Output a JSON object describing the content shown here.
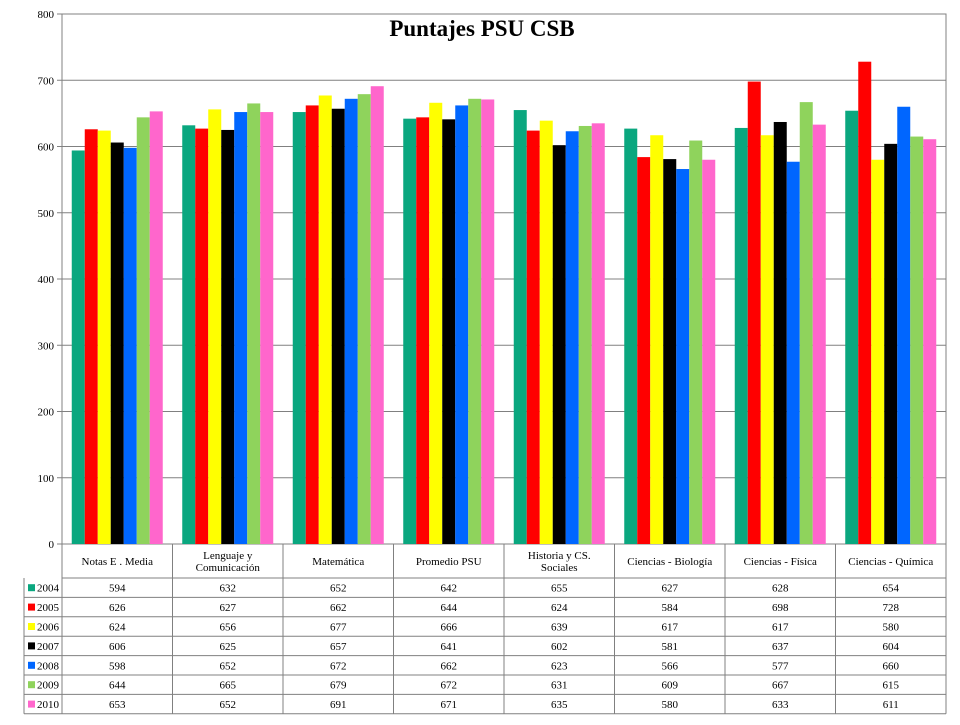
{
  "chart_data": {
    "type": "bar",
    "title": "Puntajes  PSU CSB",
    "xlabel": "",
    "ylabel": "",
    "ylim": [
      0,
      800
    ],
    "yticks": [
      0,
      100,
      200,
      300,
      400,
      500,
      600,
      700,
      800
    ],
    "grid": true,
    "legend": "data-table-bottom",
    "categories": [
      [
        "Notas E . Media"
      ],
      [
        "Lenguaje y",
        "Comunicación"
      ],
      [
        "Matemática"
      ],
      [
        "Promedio PSU"
      ],
      [
        "Historia y CS.",
        "Sociales"
      ],
      [
        "Ciencias - Biología"
      ],
      [
        "Ciencias - Física"
      ],
      [
        "Ciencias - Química"
      ]
    ],
    "series": [
      {
        "name": "2004",
        "color": "#0aa77f",
        "values": [
          594,
          632,
          652,
          642,
          655,
          627,
          628,
          654
        ]
      },
      {
        "name": "2005",
        "color": "#ff0000",
        "values": [
          626,
          627,
          662,
          644,
          624,
          584,
          698,
          728
        ]
      },
      {
        "name": "2006",
        "color": "#ffff00",
        "values": [
          624,
          656,
          677,
          666,
          639,
          617,
          617,
          580
        ]
      },
      {
        "name": "2007",
        "color": "#000000",
        "values": [
          606,
          625,
          657,
          641,
          602,
          581,
          637,
          604
        ]
      },
      {
        "name": "2008",
        "color": "#0066ff",
        "values": [
          598,
          652,
          672,
          662,
          623,
          566,
          577,
          660
        ]
      },
      {
        "name": "2009",
        "color": "#8fd35c",
        "values": [
          644,
          665,
          679,
          672,
          631,
          609,
          667,
          615
        ]
      },
      {
        "name": "2010",
        "color": "#ff66cc",
        "values": [
          653,
          652,
          691,
          671,
          635,
          580,
          633,
          611
        ]
      }
    ]
  }
}
